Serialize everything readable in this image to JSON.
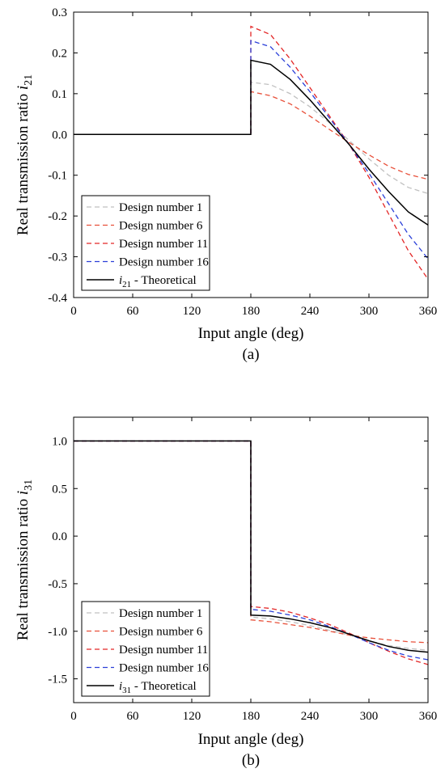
{
  "chart_data": [
    {
      "type": "line",
      "panel_label": "(a)",
      "xlabel": "Input angle (deg)",
      "ylabel_main": "Real transmission ratio ",
      "ylabel_symbol": "i",
      "ylabel_subscript": "21",
      "xlim": [
        0,
        360
      ],
      "ylim": [
        -0.4,
        0.3
      ],
      "xticks": [
        0,
        60,
        120,
        180,
        240,
        300,
        360
      ],
      "yticks": [
        -0.4,
        -0.3,
        -0.2,
        -0.1,
        0.0,
        0.1,
        0.2,
        0.3
      ],
      "ytick_labels": [
        "-0.4",
        "-0.3",
        "-0.2",
        "-0.1",
        "0.0",
        "0.1",
        "0.2",
        "0.3"
      ],
      "grid": false,
      "legend_position": "bottom-left",
      "legend_theoretical_symbol": "i",
      "legend_theoretical_subscript": "21",
      "legend_theoretical_suffix": " - Theoretical",
      "series": [
        {
          "name": "Design number 1",
          "color": "#c0c0c0",
          "dash": true,
          "x": [
            0,
            180,
            180,
            200,
            220,
            240,
            260,
            280,
            300,
            320,
            340,
            360
          ],
          "y": [
            0,
            0,
            0.128,
            0.122,
            0.1,
            0.068,
            0.028,
            -0.015,
            -0.06,
            -0.1,
            -0.13,
            -0.145
          ]
        },
        {
          "name": "Design number 6",
          "color": "#e8503a",
          "dash": true,
          "x": [
            0,
            180,
            180,
            200,
            220,
            240,
            260,
            280,
            300,
            320,
            340,
            360
          ],
          "y": [
            0,
            0,
            0.105,
            0.095,
            0.075,
            0.045,
            0.012,
            -0.02,
            -0.05,
            -0.078,
            -0.098,
            -0.11
          ]
        },
        {
          "name": "Design number 11",
          "color": "#e32626",
          "dash": true,
          "x": [
            0,
            180,
            180,
            200,
            220,
            240,
            260,
            280,
            300,
            320,
            340,
            360
          ],
          "y": [
            0,
            0,
            0.265,
            0.245,
            0.185,
            0.115,
            0.045,
            -0.025,
            -0.105,
            -0.195,
            -0.285,
            -0.355
          ]
        },
        {
          "name": "Design number 16",
          "color": "#2a3fd8",
          "dash": true,
          "x": [
            0,
            180,
            180,
            200,
            220,
            240,
            260,
            280,
            300,
            320,
            340,
            360
          ],
          "y": [
            0,
            0,
            0.23,
            0.215,
            0.165,
            0.105,
            0.04,
            -0.025,
            -0.095,
            -0.17,
            -0.245,
            -0.305
          ]
        },
        {
          "name": "Theoretical",
          "color": "#000000",
          "dash": false,
          "x": [
            0,
            180,
            180,
            200,
            220,
            240,
            260,
            280,
            300,
            320,
            340,
            360
          ],
          "y": [
            0,
            0,
            0.182,
            0.172,
            0.135,
            0.085,
            0.03,
            -0.025,
            -0.085,
            -0.14,
            -0.19,
            -0.222
          ]
        }
      ]
    },
    {
      "type": "line",
      "panel_label": "(b)",
      "xlabel": "Input angle (deg)",
      "ylabel_main": "Real transmission ratio ",
      "ylabel_symbol": "i",
      "ylabel_subscript": "31",
      "xlim": [
        0,
        360
      ],
      "ylim": [
        -1.75,
        1.25
      ],
      "xticks": [
        0,
        60,
        120,
        180,
        240,
        300,
        360
      ],
      "yticks": [
        -1.5,
        -1.0,
        -0.5,
        0.0,
        0.5,
        1.0
      ],
      "ytick_labels": [
        "-1.5",
        "-1.0",
        "-0.5",
        "0.0",
        "0.5",
        "1.0"
      ],
      "grid": false,
      "legend_position": "bottom-left",
      "legend_theoretical_symbol": "i",
      "legend_theoretical_subscript": "31",
      "legend_theoretical_suffix": " - Theoretical",
      "series": [
        {
          "name": "Design number 1",
          "color": "#c0c0c0",
          "dash": true,
          "x": [
            0,
            180,
            180,
            200,
            220,
            240,
            260,
            280,
            300,
            320,
            340,
            360
          ],
          "y": [
            1.0,
            1.0,
            -0.85,
            -0.87,
            -0.9,
            -0.94,
            -0.99,
            -1.04,
            -1.1,
            -1.15,
            -1.18,
            -1.2
          ]
        },
        {
          "name": "Design number 6",
          "color": "#e8503a",
          "dash": true,
          "x": [
            0,
            180,
            180,
            200,
            220,
            240,
            260,
            280,
            300,
            320,
            340,
            360
          ],
          "y": [
            1.0,
            1.0,
            -0.88,
            -0.9,
            -0.93,
            -0.96,
            -1.0,
            -1.04,
            -1.07,
            -1.09,
            -1.11,
            -1.12
          ]
        },
        {
          "name": "Design number 11",
          "color": "#e32626",
          "dash": true,
          "x": [
            0,
            180,
            180,
            200,
            220,
            240,
            260,
            280,
            300,
            320,
            340,
            360
          ],
          "y": [
            1.0,
            1.0,
            -0.74,
            -0.76,
            -0.8,
            -0.86,
            -0.93,
            -1.02,
            -1.12,
            -1.21,
            -1.29,
            -1.35
          ]
        },
        {
          "name": "Design number 16",
          "color": "#2a3fd8",
          "dash": true,
          "x": [
            0,
            180,
            180,
            200,
            220,
            240,
            260,
            280,
            300,
            320,
            340,
            360
          ],
          "y": [
            1.0,
            1.0,
            -0.77,
            -0.79,
            -0.83,
            -0.88,
            -0.95,
            -1.03,
            -1.12,
            -1.2,
            -1.26,
            -1.3
          ]
        },
        {
          "name": "Theoretical",
          "color": "#000000",
          "dash": false,
          "x": [
            0,
            180,
            180,
            200,
            220,
            240,
            260,
            280,
            300,
            320,
            340,
            360
          ],
          "y": [
            1.0,
            1.0,
            -0.83,
            -0.84,
            -0.87,
            -0.91,
            -0.96,
            -1.03,
            -1.1,
            -1.16,
            -1.2,
            -1.22
          ]
        }
      ]
    }
  ]
}
